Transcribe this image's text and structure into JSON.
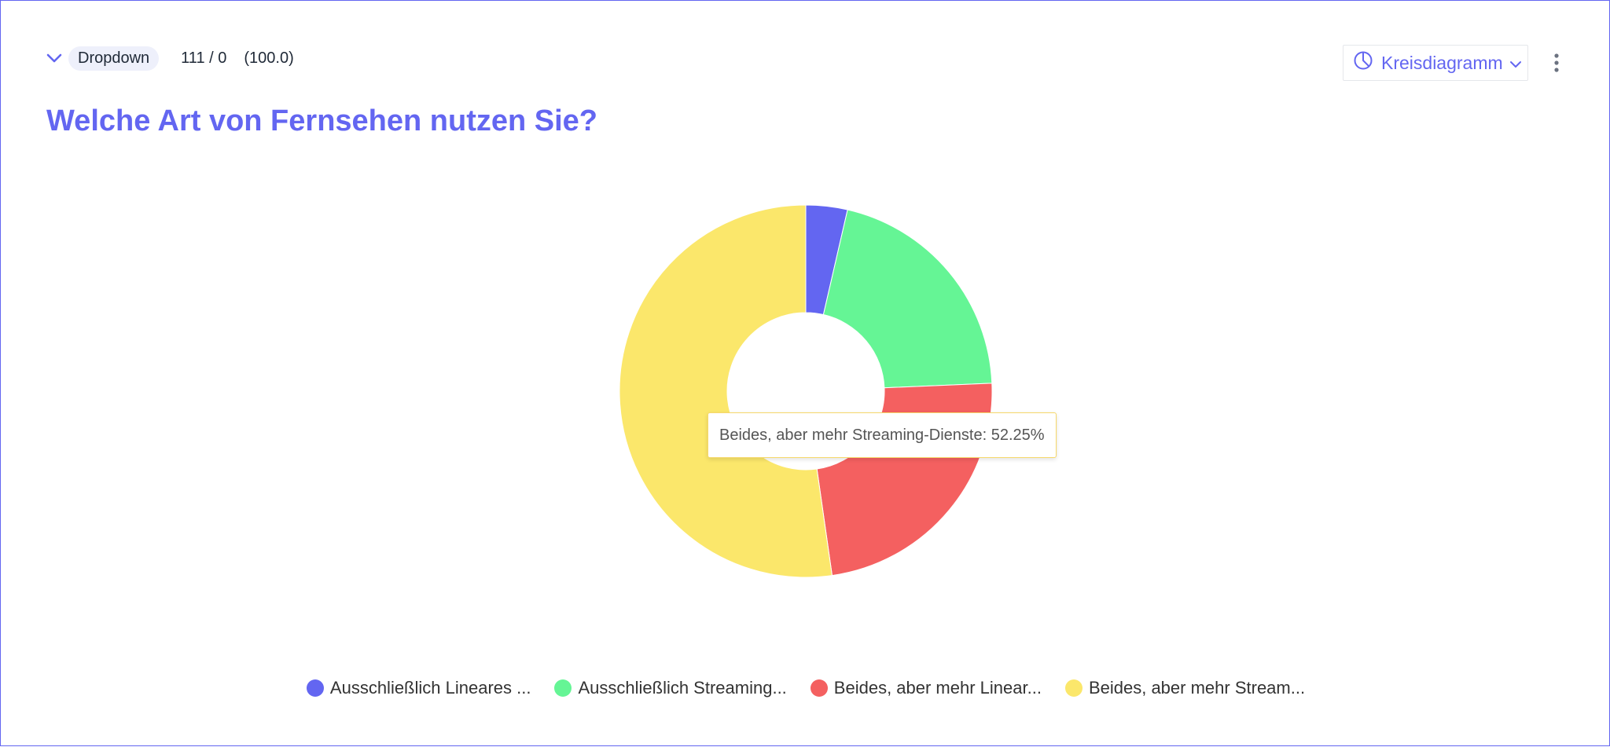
{
  "header": {
    "question_type": "Dropdown",
    "counts": "111 / 0",
    "score": "(100.0)"
  },
  "question_title": "Welche Art von Fernsehen nutzen Sie?",
  "chart_select": {
    "label": "Kreisdiagramm",
    "icon": "pie-chart-icon"
  },
  "tooltip": {
    "text": "Beides, aber mehr Streaming-Dienste: 52.25%"
  },
  "colors": {
    "accent": "#6366f1",
    "slice1": "#6366f1",
    "slice2": "#65f595",
    "slice3": "#f46060",
    "slice4": "#fbe76b"
  },
  "legend": [
    {
      "label": "Ausschließlich Lineares ...",
      "color": "#6366f1"
    },
    {
      "label": "Ausschließlich Streaming...",
      "color": "#65f595"
    },
    {
      "label": "Beides, aber mehr Linear...",
      "color": "#f46060"
    },
    {
      "label": "Beides, aber mehr Stream...",
      "color": "#fbe76b"
    }
  ],
  "chart_data": {
    "type": "pie",
    "donut": true,
    "title": "Welche Art von Fernsehen nutzen Sie?",
    "categories": [
      "Ausschließlich Lineares ...",
      "Ausschließlich Streaming...",
      "Beides, aber mehr Linear...",
      "Beides, aber mehr Stream..."
    ],
    "values": [
      3.6,
      20.72,
      23.42,
      52.25
    ],
    "unit": "%",
    "colors": [
      "#6366f1",
      "#65f595",
      "#f46060",
      "#fbe76b"
    ],
    "legend": "bottom"
  }
}
